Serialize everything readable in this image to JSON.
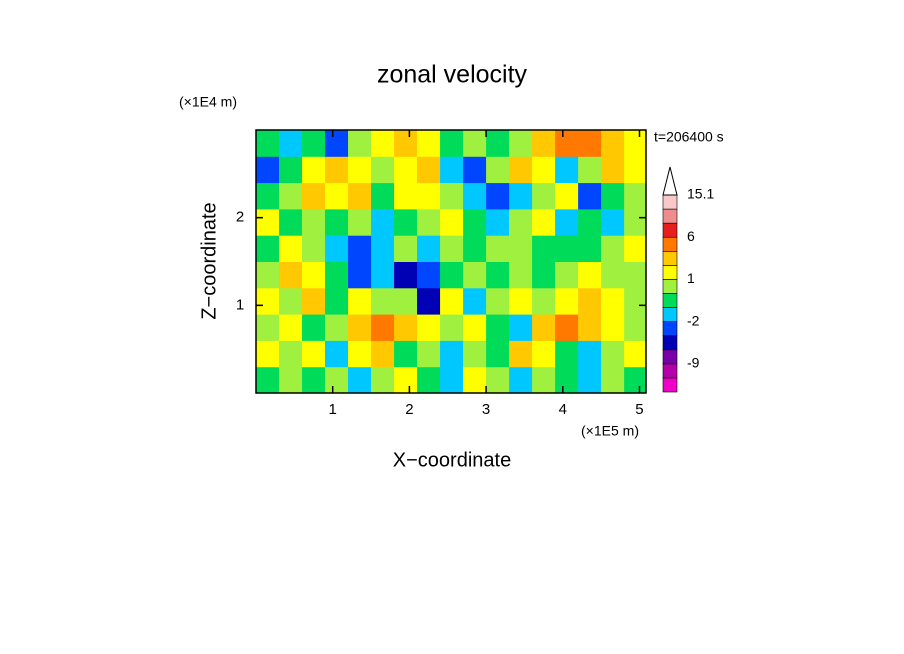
{
  "chart_data": {
    "type": "contourf",
    "title": "zonal velocity",
    "x_unit": "(×1E5 m)",
    "y_unit": "(×1E4 m)",
    "x_label": "X−coordinate",
    "y_label": "Z−coordinate",
    "annotation": "t=206400 s",
    "xlim": [
      0,
      5.085
    ],
    "ylim": [
      0,
      3
    ],
    "xticks": [
      1,
      2,
      3,
      4,
      5
    ],
    "yticks": [
      1,
      2
    ],
    "x": [
      0.15,
      0.45,
      0.75,
      1.05,
      1.35,
      1.65,
      1.95,
      2.25,
      2.55,
      2.85,
      3.15,
      3.45,
      3.75,
      4.05,
      4.35,
      4.65,
      4.95
    ],
    "y": [
      0.15,
      0.45,
      0.75,
      1.05,
      1.35,
      1.65,
      1.95,
      2.25,
      2.55,
      2.85
    ],
    "z": [
      [
        -0.5,
        0.5,
        -0.5,
        0.5,
        -1.5,
        0.5,
        1.5,
        -0.5,
        -1.5,
        1.5,
        0.5,
        -1.5,
        0.5,
        -0.5,
        -1.5,
        0.5,
        -0.5
      ],
      [
        1.5,
        0.5,
        1.5,
        -1.5,
        1.5,
        2.5,
        -0.5,
        0.5,
        -1.5,
        0.5,
        -0.5,
        2.5,
        1.5,
        -0.5,
        -1.5,
        0.5,
        1.5
      ],
      [
        0.5,
        1.5,
        -0.5,
        0.5,
        2.5,
        4,
        2.5,
        1.5,
        0.5,
        1.5,
        -0.5,
        -1.5,
        2.5,
        4,
        2.5,
        1.5,
        0.5
      ],
      [
        1.5,
        0.5,
        2.5,
        -0.5,
        1.5,
        0.5,
        0.5,
        -4,
        1.5,
        -1.5,
        0.5,
        1.5,
        0.5,
        1.5,
        2.5,
        1.5,
        0.5
      ],
      [
        0.5,
        2.5,
        1.5,
        -0.5,
        -3,
        -1.5,
        -4,
        -3,
        -0.5,
        0.5,
        -0.5,
        0.5,
        -0.5,
        0.5,
        1.5,
        0.5,
        0.5
      ],
      [
        -0.5,
        1.5,
        0.5,
        -1.5,
        -3,
        -1.5,
        0.5,
        -1.5,
        0.5,
        -0.5,
        0.5,
        0.5,
        -0.5,
        -0.5,
        -0.5,
        0.5,
        1.5
      ],
      [
        1.5,
        -0.5,
        0.5,
        -0.5,
        0.5,
        -1.5,
        -0.5,
        0.5,
        1.5,
        -0.5,
        -1.5,
        0.5,
        1.5,
        -1.5,
        -0.5,
        -1.5,
        0.5
      ],
      [
        -0.5,
        0.5,
        2.5,
        1.5,
        2.5,
        -0.5,
        1.5,
        1.5,
        0.5,
        -1.5,
        -3,
        -1.5,
        0.5,
        1.5,
        -3,
        -0.5,
        0.5
      ],
      [
        -3,
        -0.5,
        1.5,
        2.5,
        1.5,
        0.5,
        1.5,
        2.5,
        -1.5,
        -3,
        0.5,
        2.5,
        1.5,
        -1.5,
        0.5,
        2.5,
        1.5
      ],
      [
        -0.5,
        -1.5,
        -0.5,
        -3,
        0.5,
        1.5,
        2.5,
        1.5,
        -0.5,
        0.5,
        -0.5,
        0.5,
        2.5,
        4,
        4,
        2.5,
        1.5
      ]
    ],
    "colorbar": {
      "levels": [
        -15,
        -12,
        -9,
        -6,
        -3,
        -2,
        -1,
        0,
        1,
        2,
        3,
        6,
        9,
        12,
        15.1
      ],
      "colors": [
        "#f000c8",
        "#b400aa",
        "#7800a8",
        "#0000b4",
        "#0046ff",
        "#00c8ff",
        "#00dc5a",
        "#a0f040",
        "#ffff00",
        "#ffc800",
        "#ff7800",
        "#e61e1e",
        "#f08c8c",
        "#fac8c8"
      ],
      "ticks": [
        15.1,
        6,
        1,
        -2,
        -9
      ]
    }
  }
}
